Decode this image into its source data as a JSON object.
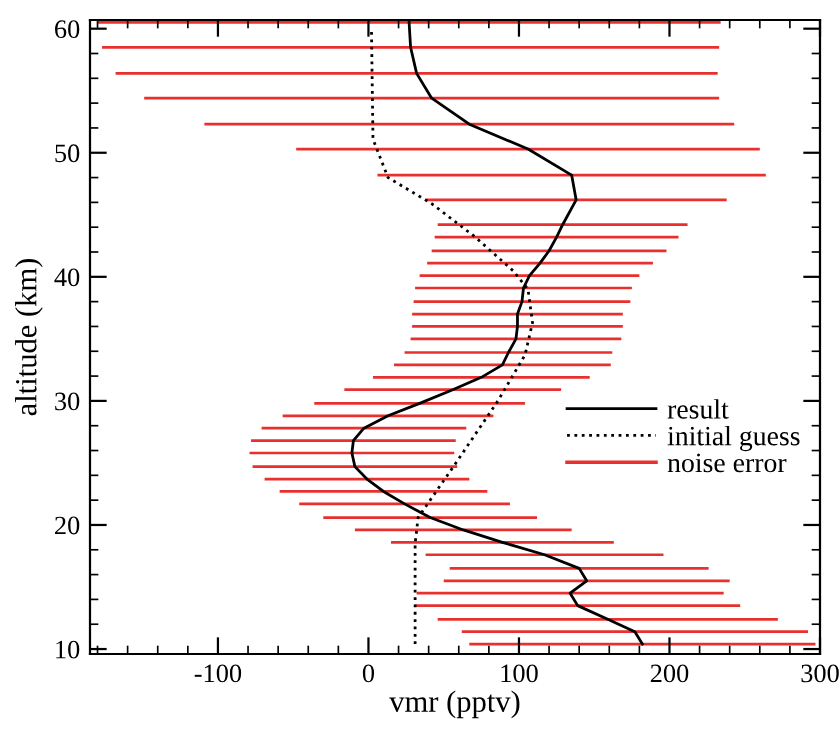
{
  "chart_data": {
    "type": "line",
    "orientation": "horizontal",
    "xlabel": "vmr (pptv)",
    "ylabel": "altitude (km)",
    "x": [
      10.4,
      11.4,
      12.4,
      13.5,
      14.5,
      15.5,
      16.5,
      17.6,
      18.6,
      19.6,
      20.6,
      21.7,
      22.7,
      23.7,
      24.7,
      25.8,
      26.8,
      27.8,
      28.8,
      29.8,
      30.9,
      31.9,
      32.9,
      33.9,
      35.0,
      36.0,
      37.0,
      38.0,
      39.1,
      40.1,
      41.1,
      42.1,
      43.2,
      44.2,
      46.2,
      48.2,
      50.3,
      52.3,
      54.4,
      56.4,
      58.5,
      60.5
    ],
    "series": [
      {
        "name": "result",
        "color": "#000000",
        "line_style": "solid",
        "values": [
          182,
          177,
          159,
          139,
          134,
          145,
          140,
          117,
          89,
          63,
          41,
          24,
          10,
          -1,
          -9,
          -11,
          -10,
          -3,
          13,
          34,
          56,
          75,
          89,
          93,
          98,
          99,
          99,
          102,
          103,
          107,
          114,
          120,
          125,
          129,
          138,
          135,
          106,
          67,
          42,
          32,
          28,
          27
        ]
      },
      {
        "name": "initial guess",
        "color": "#000000",
        "line_style": "dotted",
        "x": [
          10.4,
          18.5,
          20.6,
          24.8,
          30.0,
          33.7,
          36.3,
          39.0,
          40.5,
          43.2,
          45.9,
          48.0,
          51.1,
          60.0
        ],
        "values": [
          31,
          31,
          33,
          57,
          86,
          104,
          109,
          106,
          96,
          71,
          42,
          13,
          3,
          2
        ]
      },
      {
        "name": "noise error",
        "type": "bar",
        "color": "#e8302f",
        "base": [
          67,
          62,
          46,
          31,
          32,
          50,
          54,
          38,
          15,
          -9,
          -30,
          -46,
          -59,
          -69,
          -77,
          -79,
          -78,
          -71,
          -57,
          -36,
          -16,
          3,
          17,
          24,
          28,
          29,
          29,
          30,
          31,
          34,
          39,
          42,
          44,
          46,
          38,
          6,
          -48,
          -109,
          -149,
          -168,
          -177,
          -180
        ],
        "values": [
          230,
          230,
          226,
          216,
          204,
          190,
          172,
          158,
          148,
          144,
          142,
          140,
          138,
          136,
          136,
          136,
          136,
          136,
          140,
          140,
          144,
          144,
          144,
          138,
          140,
          140,
          140,
          144,
          144,
          146,
          150,
          156,
          162,
          166,
          200,
          258,
          308,
          352,
          382,
          400,
          410,
          414
        ]
      }
    ],
    "xlim": [
      -185,
      300
    ],
    "xticks": [
      -100,
      0,
      100,
      200,
      300
    ],
    "ylim": [
      9.6,
      60.7
    ],
    "yticks": [
      10,
      20,
      30,
      40,
      50,
      60
    ],
    "grid": false,
    "legend": "right"
  }
}
